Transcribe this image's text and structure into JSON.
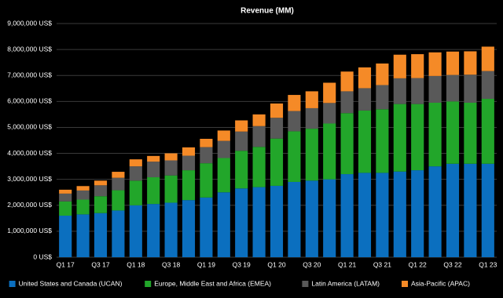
{
  "chart_data": {
    "type": "stacked-bar",
    "title": "Revenue (MM)",
    "categories": [
      "Q1 17",
      null,
      "Q3 17",
      null,
      "Q1 18",
      null,
      "Q3 18",
      null,
      "Q1 19",
      null,
      "Q3 19",
      null,
      "Q1 20",
      null,
      "Q3 20",
      null,
      "Q1 21",
      null,
      "Q3 21",
      null,
      "Q1 22",
      null,
      "Q3 22",
      null,
      "Q1 23"
    ],
    "series": [
      {
        "name": "United States and Canada (UCAN)",
        "color": "#0b6fbf",
        "values": [
          1600000,
          1650000,
          1700000,
          1800000,
          2000000,
          2050000,
          2100000,
          2200000,
          2300000,
          2500000,
          2650000,
          2700000,
          2750000,
          2900000,
          2950000,
          3000000,
          3200000,
          3250000,
          3250000,
          3300000,
          3350000,
          3500000,
          3600000,
          3600000,
          3600000
        ]
      },
      {
        "name": "Europe, Middle East and Africa (EMEA)",
        "color": "#22a62a",
        "values": [
          550000,
          570000,
          650000,
          780000,
          950000,
          1030000,
          1050000,
          1150000,
          1320000,
          1320000,
          1450000,
          1550000,
          1820000,
          1950000,
          2000000,
          2150000,
          2350000,
          2400000,
          2450000,
          2600000,
          2550000,
          2450000,
          2400000,
          2350000,
          2500000
        ]
      },
      {
        "name": "Latin America (LATAM)",
        "color": "#595959",
        "values": [
          300000,
          350000,
          420000,
          480000,
          550000,
          600000,
          580000,
          560000,
          620000,
          660000,
          740000,
          800000,
          800000,
          780000,
          790000,
          790000,
          840000,
          860000,
          930000,
          990000,
          1000000,
          1030000,
          1020000,
          1080000,
          1070000
        ]
      },
      {
        "name": "Asia-Pacific (APAC)",
        "color": "#f58a27",
        "values": [
          150000,
          170000,
          180000,
          230000,
          270000,
          220000,
          270000,
          320000,
          320000,
          400000,
          430000,
          450000,
          550000,
          620000,
          650000,
          780000,
          760000,
          800000,
          830000,
          910000,
          920000,
          910000,
          900000,
          900000,
          940000
        ]
      }
    ],
    "ylim": [
      0,
      9000000
    ],
    "yticks": [
      {
        "value": 0,
        "label": "0 US$"
      },
      {
        "value": 1000000,
        "label": "1,000,000 US$"
      },
      {
        "value": 2000000,
        "label": "2,000,000 US$"
      },
      {
        "value": 3000000,
        "label": "3,000,000 US$"
      },
      {
        "value": 4000000,
        "label": "4,000,000 US$"
      },
      {
        "value": 5000000,
        "label": "5,000,000 US$"
      },
      {
        "value": 6000000,
        "label": "6,000,000 US$"
      },
      {
        "value": 7000000,
        "label": "7,000,000 US$"
      },
      {
        "value": 8000000,
        "label": "8,000,000 US$"
      },
      {
        "value": 9000000,
        "label": "9,000,000 US$"
      }
    ],
    "grid": true,
    "legend": "bottom"
  }
}
